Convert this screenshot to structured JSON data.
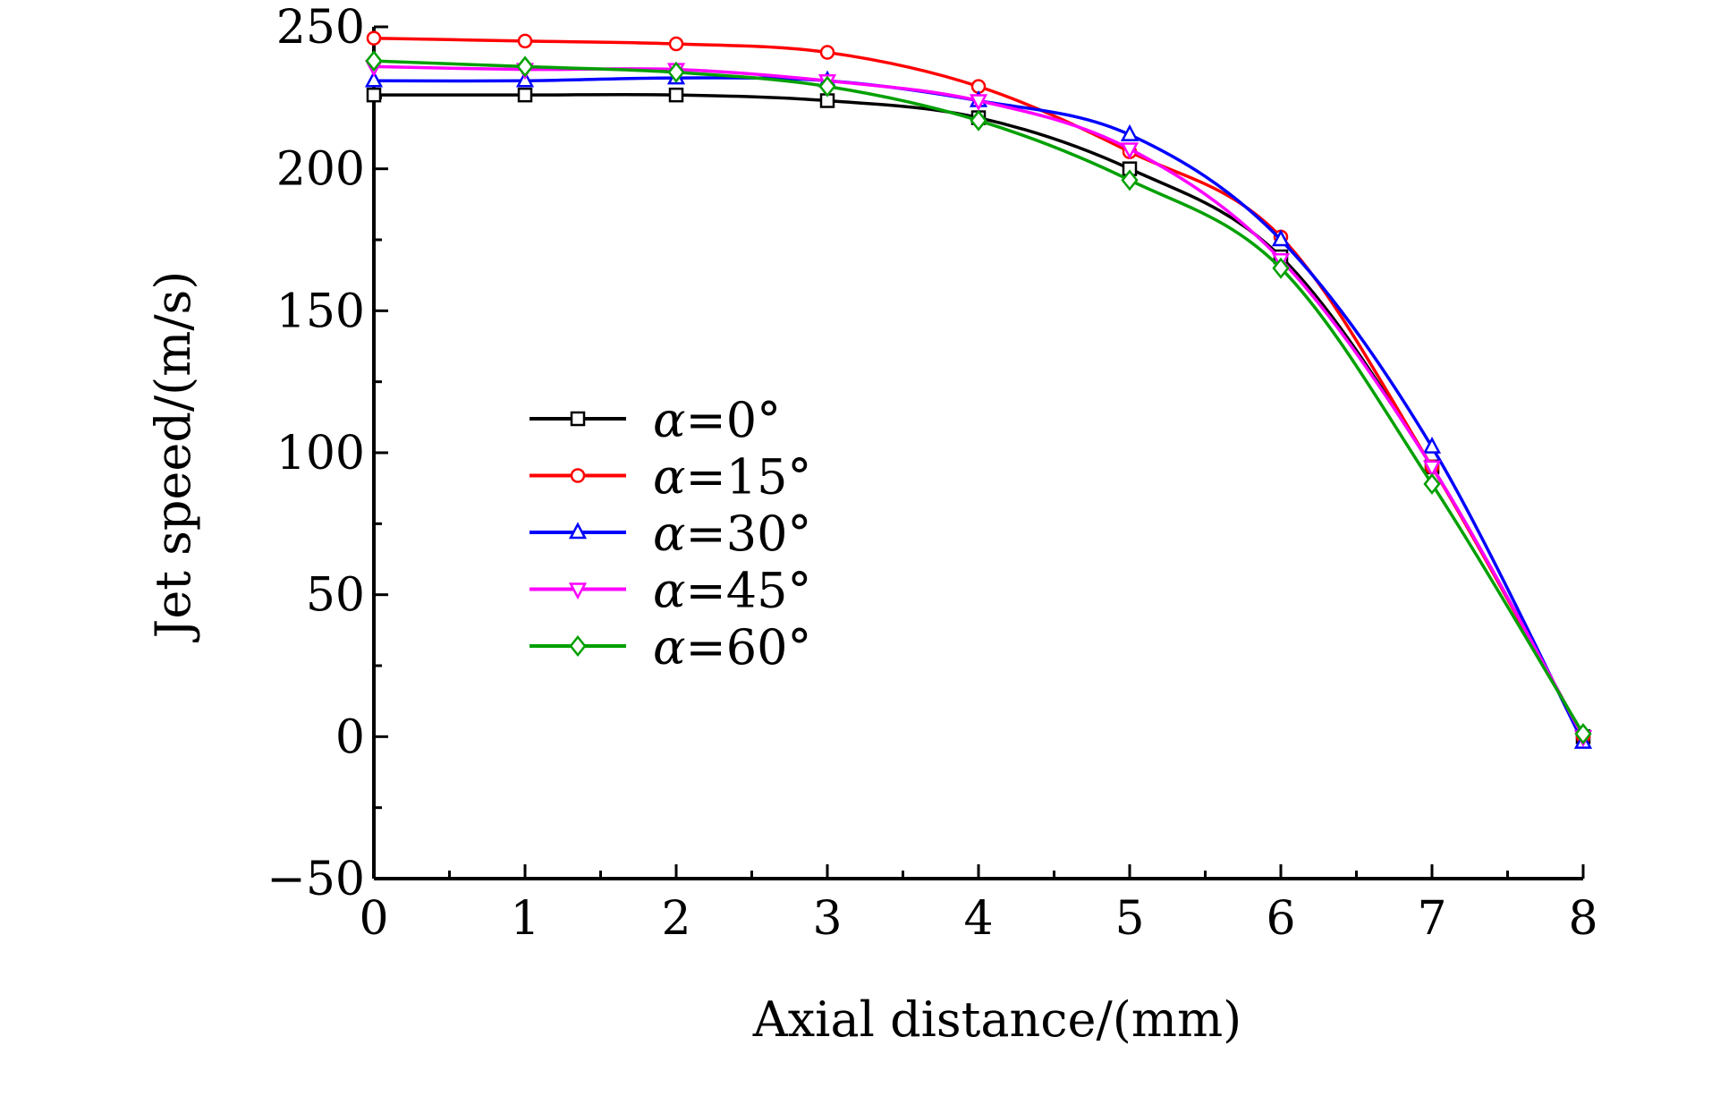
{
  "chart_data": {
    "type": "line",
    "title": "",
    "xlabel": "Axial distance/(mm)",
    "ylabel": "Jet speed/(m/s)",
    "xlim": [
      0,
      8
    ],
    "ylim": [
      -50,
      250
    ],
    "x_ticks": [
      "0",
      "1",
      "2",
      "3",
      "4",
      "5",
      "6",
      "7",
      "8"
    ],
    "y_ticks": [
      "250",
      "200",
      "150",
      "100",
      "50",
      "0",
      "−50"
    ],
    "grid": false,
    "legend_position": "center-left",
    "x": [
      0,
      1,
      2,
      3,
      4,
      5,
      6,
      7,
      8
    ],
    "series": [
      {
        "name": "α=0°",
        "symbol": "α",
        "suffix": "=0°",
        "color": "#000000",
        "marker": "square",
        "values": [
          226,
          226,
          226,
          224,
          218,
          200,
          169,
          95,
          0
        ]
      },
      {
        "name": "α=15°",
        "symbol": "α",
        "suffix": "=15°",
        "color": "#ff0000",
        "marker": "circle",
        "values": [
          246,
          245,
          244,
          241,
          229,
          206,
          176,
          95,
          0
        ]
      },
      {
        "name": "α=30°",
        "symbol": "α",
        "suffix": "=30°",
        "color": "#0000ff",
        "marker": "triangle-up",
        "values": [
          231,
          231,
          232,
          231,
          224,
          212,
          175,
          102,
          -2
        ]
      },
      {
        "name": "α=45°",
        "symbol": "α",
        "suffix": "=45°",
        "color": "#ff00ff",
        "marker": "triangle-down",
        "values": [
          236,
          235,
          235,
          231,
          224,
          207,
          168,
          95,
          0
        ]
      },
      {
        "name": "α=60°",
        "symbol": "α",
        "suffix": "=60°",
        "color": "#00a000",
        "marker": "diamond",
        "values": [
          238,
          236,
          234,
          229,
          217,
          196,
          165,
          89,
          1
        ]
      }
    ]
  }
}
